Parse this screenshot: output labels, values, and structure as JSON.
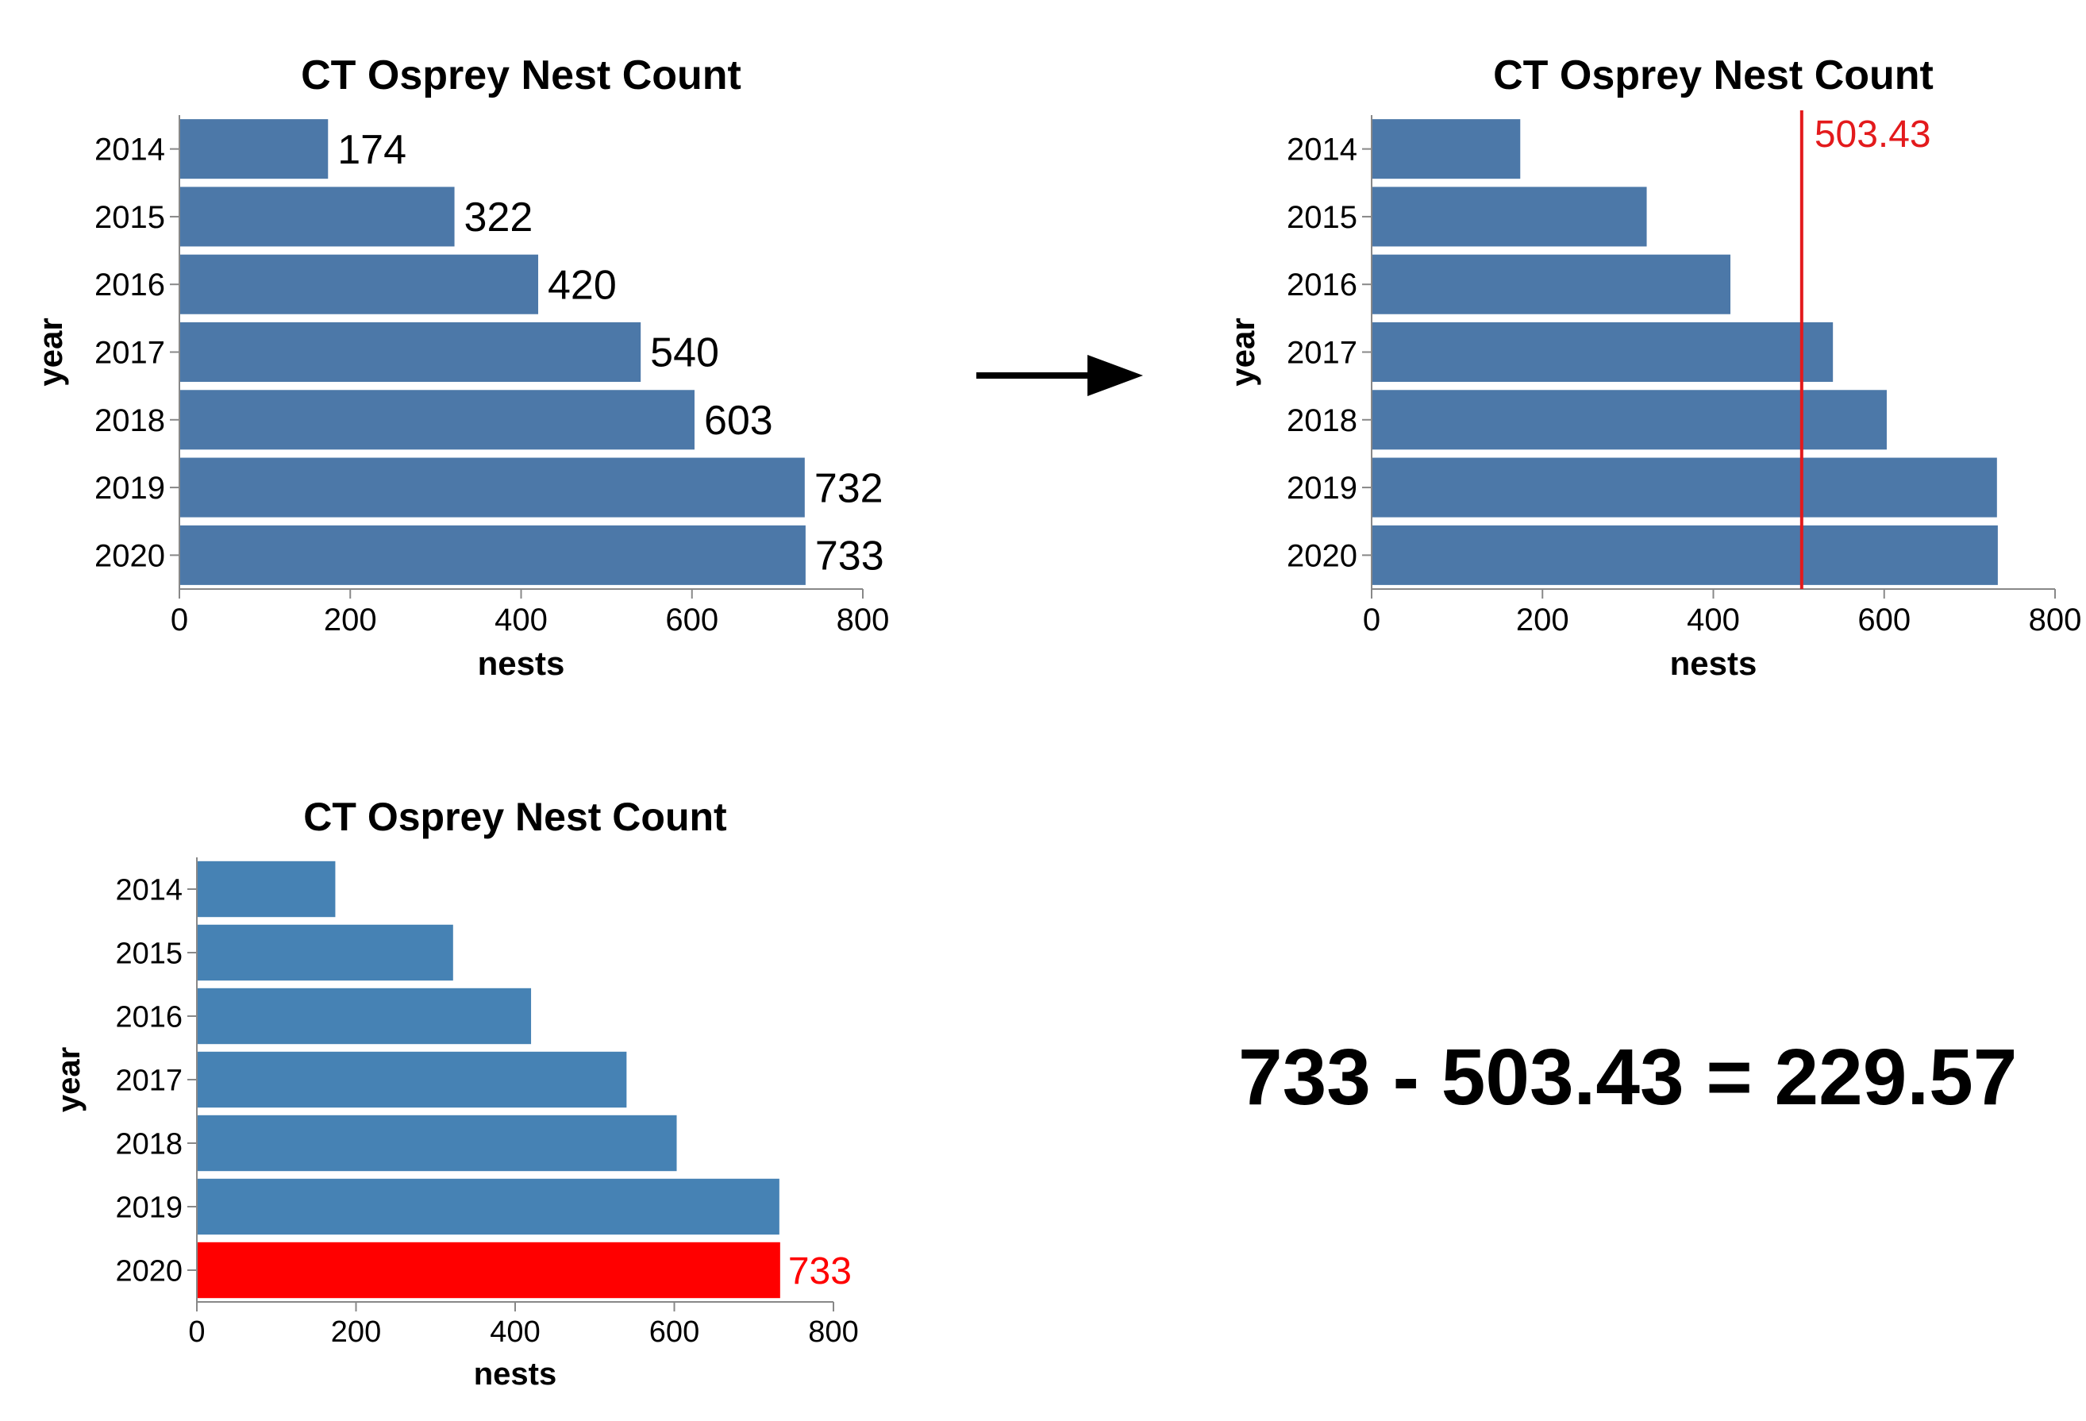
{
  "chart_data": [
    {
      "type": "bar",
      "orientation": "horizontal",
      "title": "CT Osprey Nest Count",
      "xlabel": "nests",
      "ylabel": "year",
      "categories": [
        "2014",
        "2015",
        "2016",
        "2017",
        "2018",
        "2019",
        "2020"
      ],
      "values": [
        174,
        322,
        420,
        540,
        603,
        732,
        733
      ],
      "data_labels": [
        "174",
        "322",
        "420",
        "540",
        "603",
        "732",
        "733"
      ],
      "xlim": [
        0,
        800
      ],
      "xticks": [
        "0",
        "200",
        "400",
        "600",
        "800"
      ],
      "bar_color": "#4c78a8"
    },
    {
      "type": "bar",
      "orientation": "horizontal",
      "title": "CT Osprey Nest Count",
      "xlabel": "nests",
      "ylabel": "year",
      "categories": [
        "2014",
        "2015",
        "2016",
        "2017",
        "2018",
        "2019",
        "2020"
      ],
      "values": [
        174,
        322,
        420,
        540,
        603,
        732,
        733
      ],
      "xlim": [
        0,
        800
      ],
      "xticks": [
        "0",
        "200",
        "400",
        "600",
        "800"
      ],
      "bar_color": "#4c78a8",
      "reference_line": {
        "value": 503.43,
        "label": "503.43",
        "color": "#e31a1c"
      }
    },
    {
      "type": "bar",
      "orientation": "horizontal",
      "title": "CT Osprey Nest Count",
      "xlabel": "nests",
      "ylabel": "year",
      "categories": [
        "2014",
        "2015",
        "2016",
        "2017",
        "2018",
        "2019",
        "2020"
      ],
      "values": [
        174,
        322,
        420,
        540,
        603,
        732,
        733
      ],
      "xlim": [
        0,
        800
      ],
      "xticks": [
        "0",
        "200",
        "400",
        "600",
        "800"
      ],
      "bar_color": "#4682b4",
      "highlight": {
        "category": "2020",
        "label": "733",
        "color": "#ff0000"
      }
    }
  ],
  "equation": "733 - 503.43 = 229.57",
  "arrow_color": "#000000"
}
